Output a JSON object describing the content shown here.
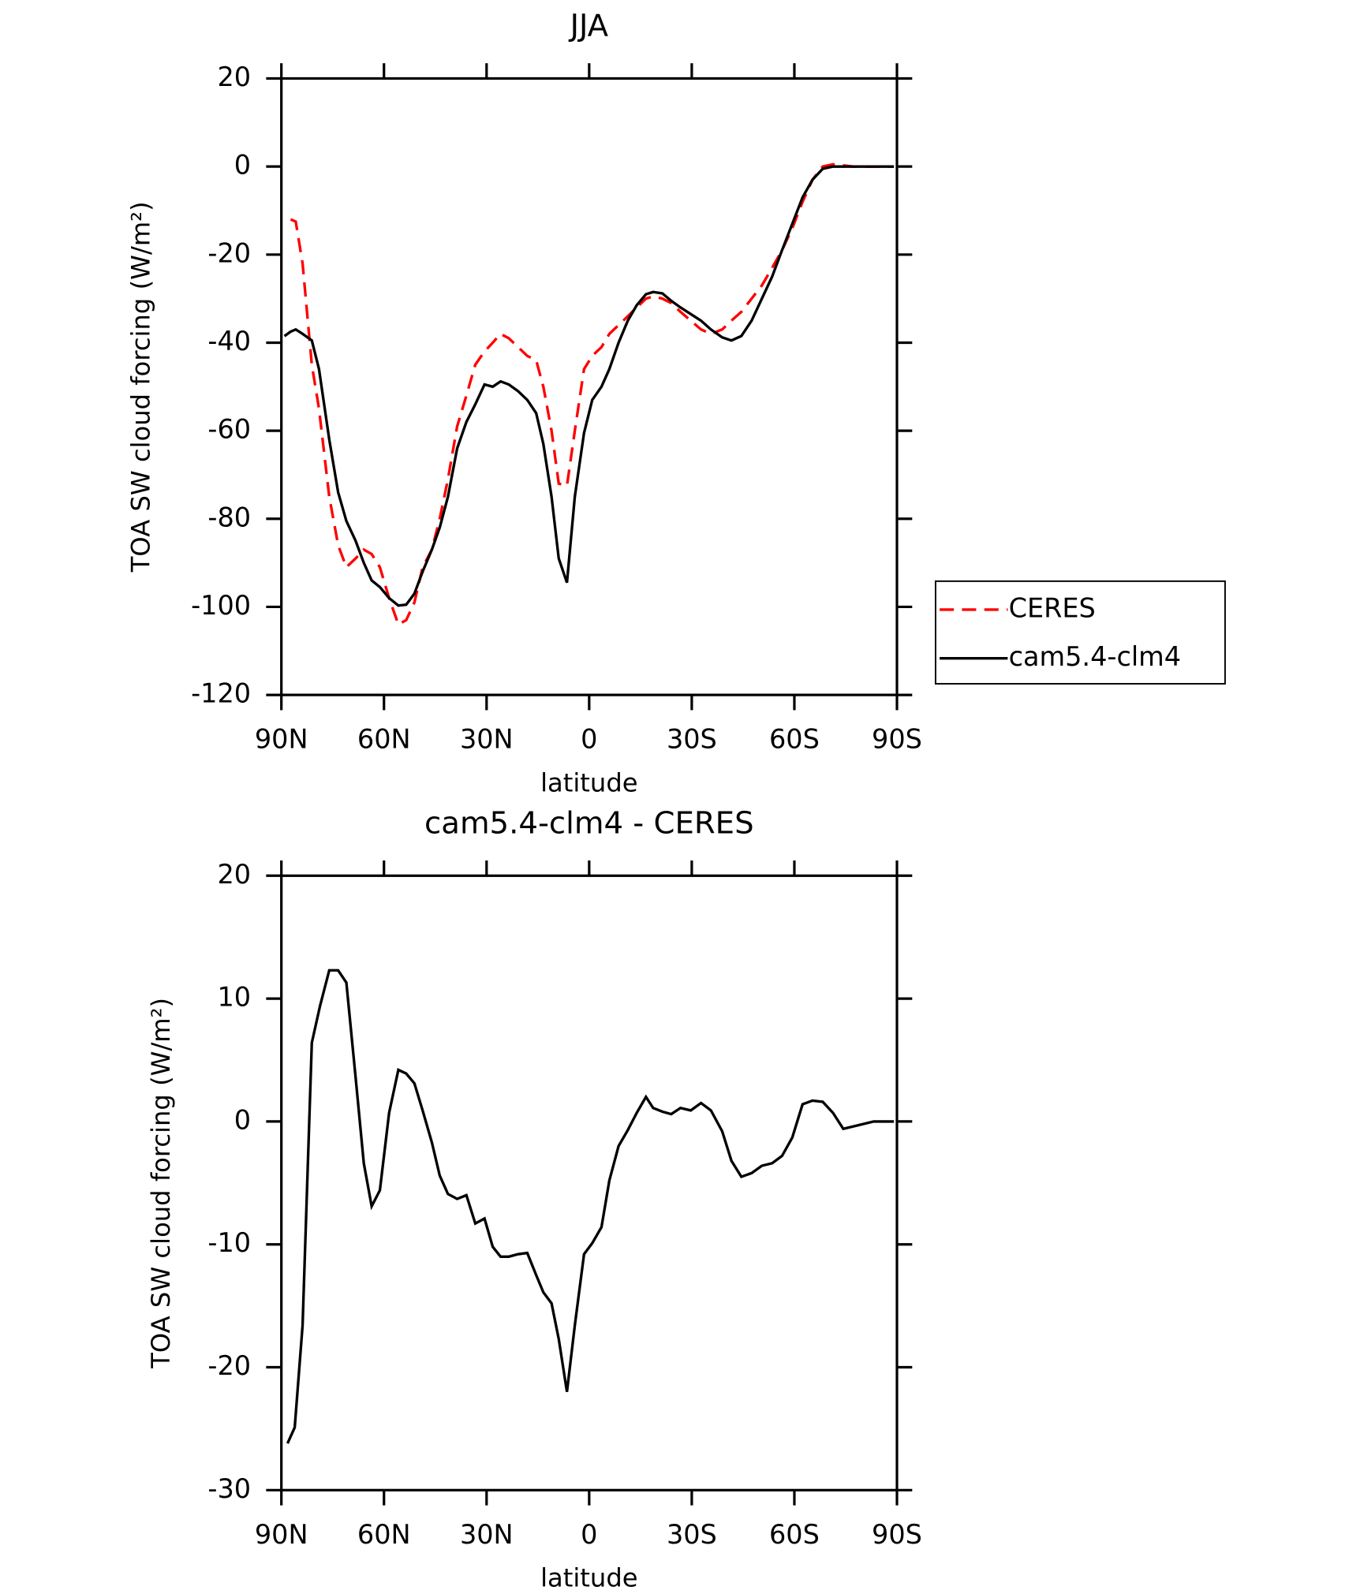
{
  "chart_data": [
    {
      "type": "line",
      "title": "JJA",
      "xlabel": "latitude",
      "ylabel": "TOA SW cloud forcing (W/m²)",
      "x": [
        89.1,
        87.3,
        85.8,
        83.8,
        81.1,
        79.0,
        76.0,
        73.4,
        71.0,
        68.3,
        65.9,
        63.6,
        61.2,
        58.5,
        55.8,
        53.5,
        51.1,
        48.7,
        46.0,
        43.7,
        41.3,
        38.6,
        35.9,
        33.3,
        30.6,
        28.2,
        25.9,
        23.5,
        20.8,
        18.1,
        15.5,
        13.4,
        11.0,
        8.9,
        6.5,
        4.2,
        1.5,
        -0.9,
        -3.6,
        -5.9,
        -8.6,
        -11.3,
        -13.9,
        -16.6,
        -18.7,
        -21.4,
        -24.0,
        -26.7,
        -29.7,
        -32.7,
        -35.6,
        -38.9,
        -41.6,
        -44.5,
        -47.5,
        -50.5,
        -53.5,
        -56.4,
        -59.4,
        -62.4,
        -65.3,
        -68.3,
        -71.3,
        -77.2,
        -83.2,
        -89.1
      ],
      "series": [
        {
          "name": "CERES",
          "color": "#ff0000",
          "dash": true,
          "values": [
            null,
            -12,
            -12.5,
            -22,
            -45,
            -55,
            -75,
            -86,
            -91,
            -89,
            -87,
            -88,
            -91,
            -98,
            -104,
            -103,
            -99,
            -91,
            -87,
            -80,
            -71,
            -59,
            -52,
            -45,
            -42,
            -40,
            -38,
            -39,
            -41,
            -43,
            -44,
            -50,
            -60,
            -72,
            -72.5,
            -60,
            -46,
            -43,
            -41,
            -38,
            -36,
            -34,
            -32,
            -30,
            -29.5,
            -30,
            -31,
            -33,
            -35,
            -37,
            -38,
            -37,
            -35,
            -33,
            -30,
            -27,
            -23,
            -19,
            -14,
            -8,
            -3,
            0,
            0.5,
            0,
            0,
            0
          ]
        },
        {
          "name": "cam5.4-clm4",
          "color": "#000000",
          "dash": false,
          "values": [
            -38.5,
            -37.5,
            -37,
            -38,
            -39.5,
            -46,
            -62,
            -74,
            -80.5,
            -85,
            -90,
            -94,
            -95.5,
            -98,
            -99.7,
            -99.5,
            -97,
            -92,
            -87,
            -82,
            -75,
            -64,
            -58,
            -54,
            -49.5,
            -50,
            -48.8,
            -49.5,
            -51,
            -53,
            -56,
            -63,
            -75,
            -89,
            -94.5,
            -75,
            -60.5,
            -53,
            -50,
            -46,
            -40,
            -35,
            -31.5,
            -29,
            -28.5,
            -28.8,
            -30.5,
            -32,
            -33.5,
            -35,
            -37,
            -38.8,
            -39.5,
            -38.5,
            -35,
            -30,
            -25,
            -19,
            -13,
            -7,
            -3,
            -0.5,
            0,
            0,
            0,
            0
          ]
        }
      ],
      "xlim": [
        90,
        -90
      ],
      "xticks": [
        {
          "value": 90,
          "label": "90N"
        },
        {
          "value": 60,
          "label": "60N"
        },
        {
          "value": 30,
          "label": "30N"
        },
        0,
        {
          "value": -30,
          "label": "30S"
        },
        {
          "value": -60,
          "label": "60S"
        },
        {
          "value": -90,
          "label": "90S"
        }
      ],
      "ylim": [
        -120,
        20
      ],
      "yticks": [
        -120,
        -100,
        -80,
        -60,
        -40,
        -20,
        0,
        20
      ],
      "legend": "right"
    },
    {
      "type": "line",
      "title": "cam5.4-clm4 - CERES",
      "xlabel": "latitude",
      "ylabel": "TOA SW cloud forcing (W/m²)",
      "x": [
        88.2,
        86.1,
        83.8,
        81.1,
        78.7,
        76.0,
        73.4,
        71.0,
        68.3,
        65.9,
        63.6,
        61.2,
        58.5,
        55.8,
        53.5,
        51.1,
        48.7,
        46.0,
        43.7,
        41.3,
        38.6,
        35.9,
        33.3,
        30.6,
        28.2,
        25.9,
        23.5,
        20.8,
        18.1,
        15.5,
        13.4,
        11.0,
        8.9,
        6.5,
        4.2,
        1.5,
        -0.9,
        -3.6,
        -5.9,
        -8.6,
        -11.3,
        -13.9,
        -16.6,
        -18.7,
        -21.4,
        -24.0,
        -26.7,
        -29.7,
        -32.7,
        -35.6,
        -38.9,
        -41.6,
        -44.5,
        -47.5,
        -50.5,
        -53.5,
        -56.4,
        -59.4,
        -62.4,
        -65.3,
        -68.3,
        -71.3,
        -74.3,
        -78.7,
        -83.2,
        -89.1
      ],
      "values": [
        -26.2,
        -24.9,
        -16.6,
        6.4,
        9.4,
        12.3,
        12.3,
        11.3,
        3.6,
        -3.4,
        -6.9,
        -5.6,
        0.7,
        4.2,
        3.9,
        3.1,
        0.9,
        -1.7,
        -4.4,
        -5.9,
        -6.3,
        -6.0,
        -8.3,
        -7.9,
        -10.2,
        -11.0,
        -11.0,
        -10.8,
        -10.7,
        -12.5,
        -13.9,
        -14.8,
        -17.7,
        -22.0,
        -16.6,
        -10.8,
        -9.9,
        -8.6,
        -4.8,
        -2.0,
        -0.7,
        0.7,
        2.0,
        1.1,
        0.8,
        0.6,
        1.1,
        0.9,
        1.5,
        0.9,
        -0.8,
        -3.2,
        -4.5,
        -4.2,
        -3.6,
        -3.4,
        -2.8,
        -1.3,
        1.4,
        1.7,
        1.6,
        0.7,
        -0.6,
        -0.3,
        0,
        0
      ],
      "color": "#000000",
      "xlim": [
        90,
        -90
      ],
      "xticks": [
        {
          "value": 90,
          "label": "90N"
        },
        {
          "value": 60,
          "label": "60N"
        },
        {
          "value": 30,
          "label": "30N"
        },
        0,
        {
          "value": -30,
          "label": "30S"
        },
        {
          "value": -60,
          "label": "60S"
        },
        {
          "value": -90,
          "label": "90S"
        }
      ],
      "ylim": [
        -30,
        20
      ],
      "yticks": [
        -30,
        -20,
        -10,
        0,
        10,
        20
      ]
    }
  ]
}
